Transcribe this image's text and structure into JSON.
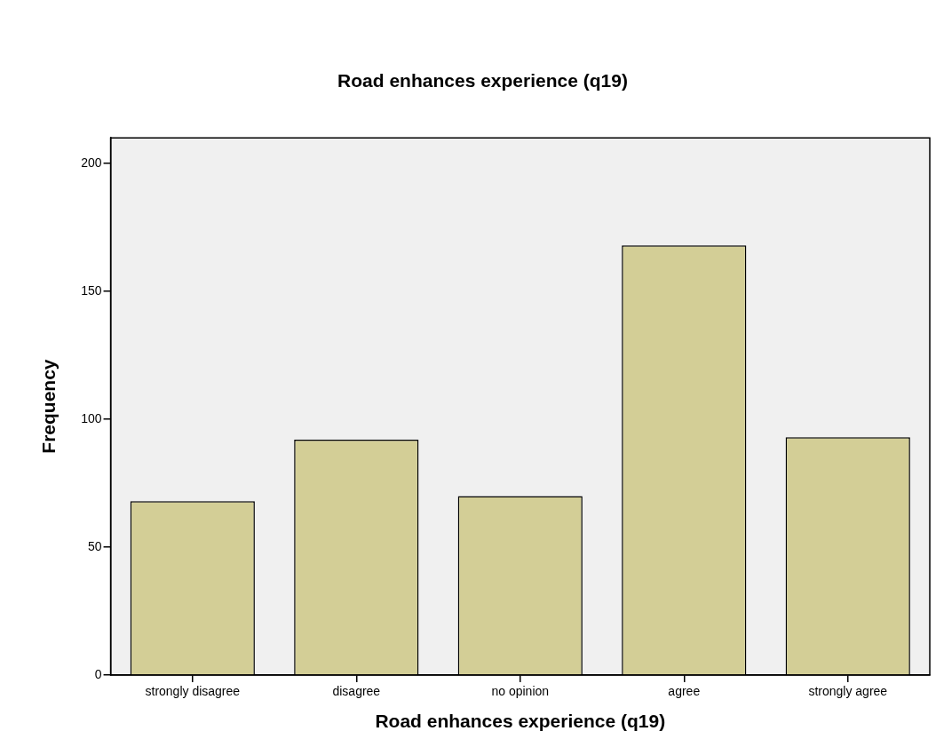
{
  "chart_data": {
    "type": "bar",
    "title": "Road enhances experience (q19)",
    "xlabel": "Road enhances experience (q19)",
    "ylabel": "Frequency",
    "categories": [
      "strongly disagree",
      "disagree",
      "no opinion",
      "agree",
      "strongly agree"
    ],
    "values": [
      68,
      92,
      70,
      168,
      93
    ],
    "color": "#d3ce96",
    "ylim": [
      0,
      210
    ],
    "yticks": [
      0,
      50,
      100,
      150,
      200
    ]
  }
}
